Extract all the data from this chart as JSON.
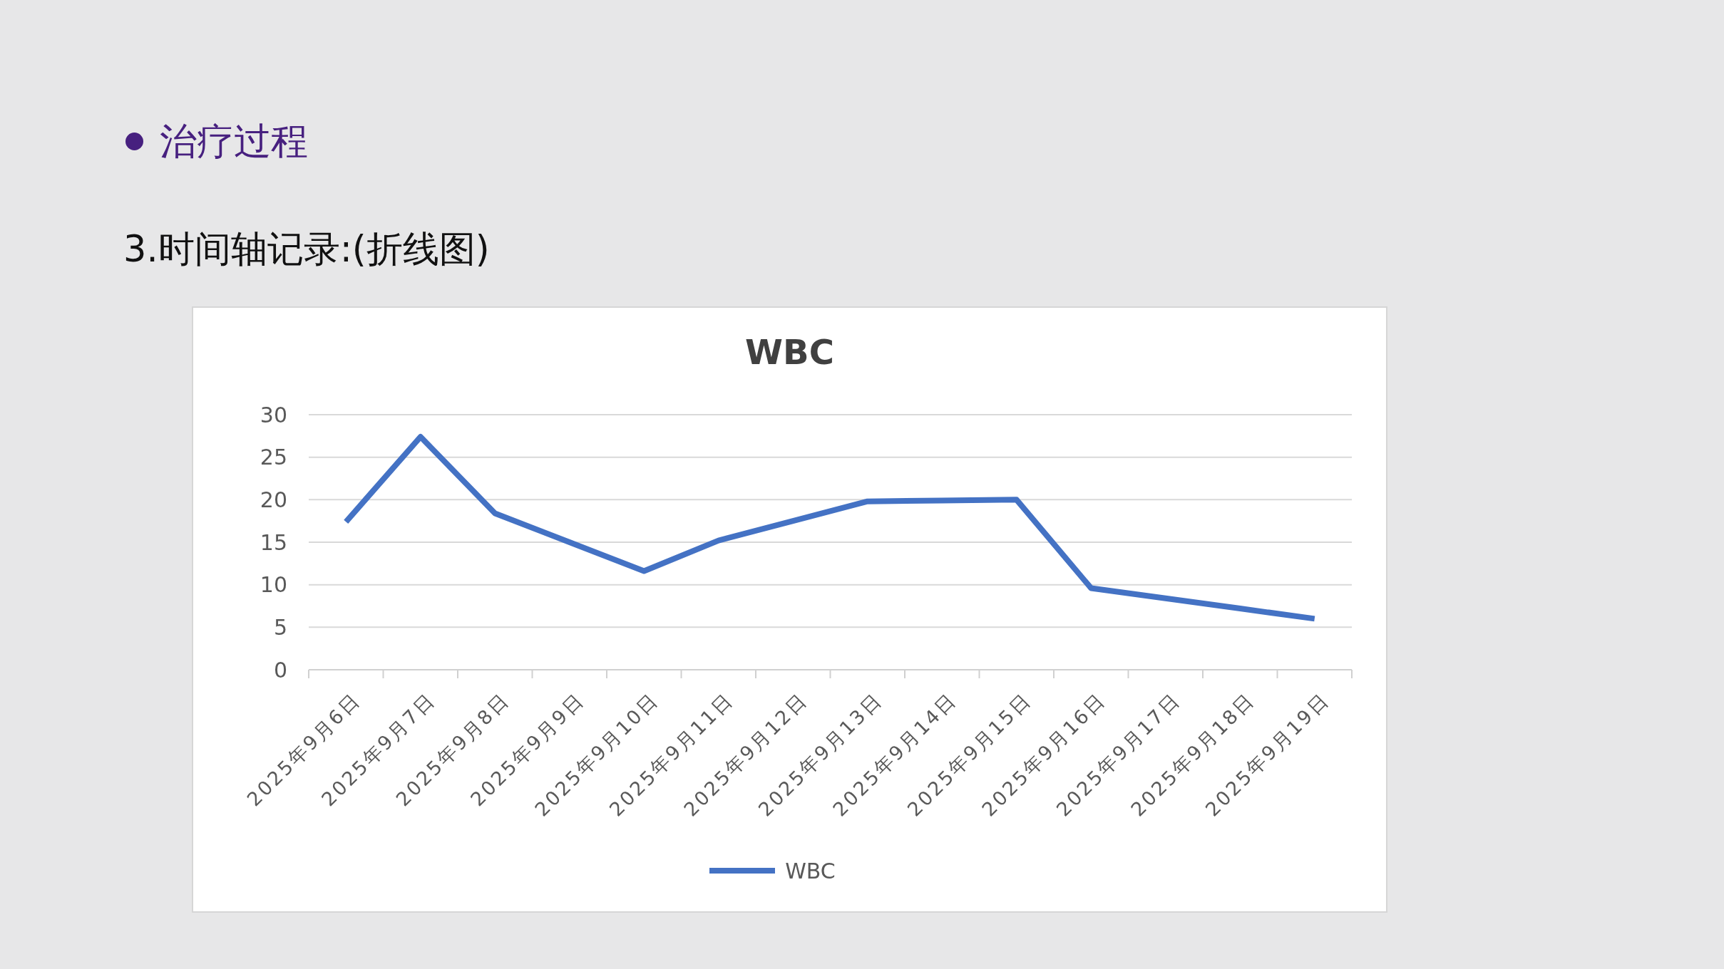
{
  "chart_data": {
    "type": "line",
    "title": "WBC",
    "annotations": [
      "治疗过程",
      "3.时间轴记录:(折线图)"
    ],
    "categories": [
      "2025年9月6日",
      "2025年9月7日",
      "2025年9月8日",
      "2025年9月9日",
      "2025年9月10日",
      "2025年9月11日",
      "2025年9月12日",
      "2025年9月13日",
      "2025年9月14日",
      "2025年9月15日",
      "2025年9月16日",
      "2025年9月17日",
      "2025年9月18日",
      "2025年9月19日"
    ],
    "series": [
      {
        "name": "WBC",
        "color": "#4472c4",
        "values": [
          17.4,
          27.4,
          18.4,
          15.0,
          11.6,
          15.2,
          17.5,
          19.8,
          19.9,
          20.0,
          9.6,
          8.4,
          7.2,
          6.0
        ]
      }
    ],
    "ylim": [
      0,
      30
    ],
    "yticks": [
      0,
      5,
      10,
      15,
      20,
      25,
      30
    ],
    "grid": "y",
    "legend": "bottom",
    "marker": "none",
    "line_style": "solid"
  }
}
